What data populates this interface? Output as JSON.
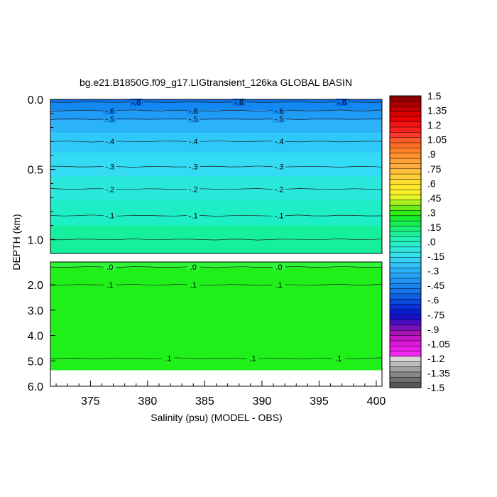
{
  "chart_data": {
    "type": "contour",
    "title": "bg.e21.B1850G.f09_g17.LIGtransient_126ka GLOBAL BASIN",
    "xlabel": "Salinity (psu) (MODEL - OBS)",
    "ylabel": "DEPTH (km)",
    "xlim": [
      371.5,
      400.5
    ],
    "x_ticks": [
      375,
      380,
      385,
      390,
      395,
      400
    ],
    "x_tick_labels": [
      "375",
      "380",
      "385",
      "390",
      "395",
      "400"
    ],
    "upper_panel": {
      "ylim": [
        0.0,
        1.1
      ],
      "y_ticks": [
        0.0,
        0.5,
        1.0
      ],
      "y_tick_labels": [
        "0.0",
        "0.5",
        "1.0"
      ],
      "bands": [
        {
          "from": 0.0,
          "to": 0.02,
          "color": "#0a6ee6"
        },
        {
          "from": 0.02,
          "to": 0.08,
          "color": "#1188f2"
        },
        {
          "from": 0.08,
          "to": 0.15,
          "color": "#1f9cf6"
        },
        {
          "from": 0.15,
          "to": 0.24,
          "color": "#2bb3f8"
        },
        {
          "from": 0.24,
          "to": 0.38,
          "color": "#2ec9f8"
        },
        {
          "from": 0.38,
          "to": 0.55,
          "color": "#33dcf4"
        },
        {
          "from": 0.55,
          "to": 0.72,
          "color": "#2ae7dc"
        },
        {
          "from": 0.72,
          "to": 0.9,
          "color": "#1deec6"
        },
        {
          "from": 0.9,
          "to": 1.1,
          "color": "#16f09c"
        }
      ],
      "contours": [
        {
          "depth": 0.02,
          "label": "-.6",
          "label_x": [
            379,
            388,
            397
          ]
        },
        {
          "depth": 0.08,
          "label": "-.6",
          "label_x": [
            376.7,
            384,
            391.5
          ]
        },
        {
          "depth": 0.14,
          "label": "-.5",
          "label_x": [
            376.7,
            384,
            391.5
          ]
        },
        {
          "depth": 0.3,
          "label": "-.4",
          "label_x": [
            376.7,
            384,
            391.5
          ]
        },
        {
          "depth": 0.48,
          "label": "-.3",
          "label_x": [
            376.7,
            384,
            391.5
          ]
        },
        {
          "depth": 0.64,
          "label": "-.2",
          "label_x": [
            376.7,
            384,
            391.5
          ]
        },
        {
          "depth": 0.83,
          "label": "-.1",
          "label_x": [
            376.7,
            384,
            391.5
          ]
        },
        {
          "depth": 1.0,
          "label": "",
          "label_x": []
        }
      ]
    },
    "lower_panel": {
      "ylim": [
        1.1,
        6.0
      ],
      "y_ticks": [
        2.0,
        3.0,
        4.0,
        5.0,
        6.0
      ],
      "y_tick_labels": [
        "2.0",
        "3.0",
        "4.0",
        "5.0",
        "6.0"
      ],
      "data_bottom": 5.37,
      "bands": [
        {
          "from": 1.1,
          "to": 1.3,
          "color": "#2ef53a"
        },
        {
          "from": 1.3,
          "to": 5.37,
          "color": "#1ff01a"
        }
      ],
      "contours": [
        {
          "depth": 1.3,
          "label": ".0",
          "label_x": [
            376.7,
            384,
            391.5
          ]
        },
        {
          "depth": 2.0,
          "label": ".1",
          "label_x": [
            376.7,
            384,
            391.5
          ]
        },
        {
          "depth": 4.9,
          "label": ".1",
          "label_x": [
            381.8,
            389.2,
            396.7
          ]
        }
      ]
    },
    "colorbar": {
      "labels": [
        "1.5",
        "1.35",
        "1.2",
        "1.05",
        ".9",
        ".75",
        ".6",
        ".45",
        ".3",
        ".15",
        ".0",
        "-.15",
        "-.3",
        "-.45",
        "-.6",
        "-.75",
        "-.9",
        "-1.05",
        "-1.2",
        "-1.35",
        "-1.5"
      ],
      "colors": [
        "#8c0000",
        "#a80000",
        "#c00000",
        "#d60000",
        "#e80000",
        "#f21515",
        "#ff2020",
        "#ff3a2a",
        "#ff5a2a",
        "#ff6e28",
        "#ff8226",
        "#ff9230",
        "#ffa23a",
        "#ffb040",
        "#ffbf3a",
        "#ffce36",
        "#ffdc30",
        "#ffe82a",
        "#f6f028",
        "#e4f528",
        "#a8f020",
        "#6cee18",
        "#30ec18",
        "#18ec2e",
        "#16ee52",
        "#18f078",
        "#1cf096",
        "#22f0b4",
        "#28eecc",
        "#2ee8dc",
        "#34e2ec",
        "#36d2f4",
        "#32c2f6",
        "#2cb2f8",
        "#26a2f6",
        "#2092f2",
        "#1a84ee",
        "#1476ea",
        "#1060e4",
        "#0c48dc",
        "#0a30d6",
        "#0a1ed0",
        "#1a10c8",
        "#4a10c0",
        "#7a12b8",
        "#a814b6",
        "#c814c8",
        "#dc18dc",
        "#e81ee8",
        "#f028f0",
        "#d8d8d8",
        "#bcbcbc",
        "#a0a0a0",
        "#888888",
        "#6e6e6e",
        "#555555"
      ]
    }
  }
}
